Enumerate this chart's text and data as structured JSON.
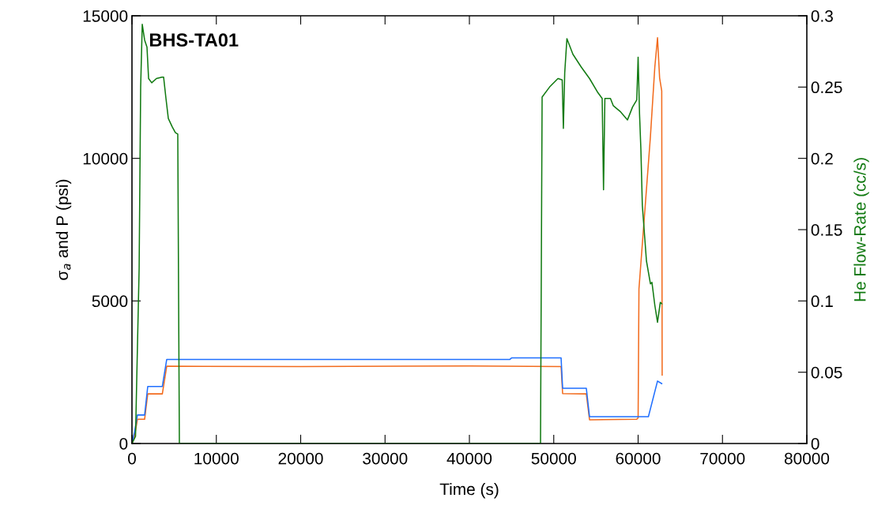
{
  "chart_data": {
    "type": "line",
    "title": "BHS-TA01",
    "xlabel": "Time (s)",
    "ylabel": "σ$_{a}$ and P (psi)",
    "y2label": "He Flow-Rate (cc/s)",
    "xlim": [
      0,
      80000
    ],
    "xticks": [
      0,
      10000,
      20000,
      30000,
      40000,
      50000,
      60000,
      70000,
      80000
    ],
    "ylim": [
      0,
      15000
    ],
    "yticks": [
      0,
      5000,
      10000,
      15000
    ],
    "y2lim": [
      0,
      0.3
    ],
    "y2ticks": [
      0,
      0.05,
      0.1,
      0.15,
      0.2,
      0.25,
      0.3
    ],
    "grid": false,
    "legend": false,
    "series": [
      {
        "color": "#f26b1d",
        "x": [
          0,
          300,
          650,
          1500,
          1870,
          3600,
          4120,
          20000,
          40000,
          50870,
          51050,
          53860,
          54240,
          59840,
          60000,
          60100,
          61460,
          61980,
          62300,
          62550,
          62800,
          62850
        ],
        "values": [
          0,
          250,
          850,
          850,
          1740,
          1740,
          2710,
          2700,
          2720,
          2700,
          1750,
          1740,
          830,
          850,
          900,
          5420,
          10770,
          13200,
          14230,
          12820,
          12370,
          2400
        ]
      },
      {
        "color": "#1f6fff",
        "x": [
          0,
          300,
          650,
          1500,
          1870,
          3600,
          4120,
          44800,
          45000,
          50870,
          51050,
          53860,
          54240,
          61220,
          62300,
          62800
        ],
        "values": [
          0,
          400,
          1000,
          1000,
          2000,
          2000,
          2950,
          2950,
          3000,
          3000,
          1940,
          1940,
          940,
          940,
          2190,
          2100
        ]
      },
      {
        "color": "#117a11",
        "axis": "y2",
        "x": [
          0,
          420,
          850,
          1030,
          1220,
          1500,
          1780,
          1970,
          2340,
          2900,
          3560,
          3750,
          4030,
          4310,
          4780,
          5150,
          5430,
          5530,
          5620,
          48430,
          48620,
          49500,
          50500,
          51000,
          51140,
          51300,
          51560,
          52270,
          53260,
          54240,
          55240,
          55740,
          55900,
          56060,
          56720,
          57050,
          57860,
          58740,
          59340,
          59840,
          60000,
          60170,
          60330,
          60500,
          60990,
          61460,
          61640,
          61980,
          62300,
          62630,
          62800
        ],
        "values": [
          0,
          0.005,
          0.123,
          0.25,
          0.294,
          0.283,
          0.278,
          0.256,
          0.253,
          0.256,
          0.257,
          0.257,
          0.242,
          0.228,
          0.222,
          0.218,
          0.217,
          0.101,
          0,
          0,
          0.243,
          0.25,
          0.256,
          0.255,
          0.221,
          0.26,
          0.284,
          0.273,
          0.264,
          0.256,
          0.246,
          0.242,
          0.178,
          0.242,
          0.242,
          0.237,
          0.233,
          0.227,
          0.236,
          0.241,
          0.271,
          0.231,
          0.206,
          0.167,
          0.128,
          0.112,
          0.113,
          0.097,
          0.085,
          0.099,
          0.098
        ]
      }
    ]
  }
}
